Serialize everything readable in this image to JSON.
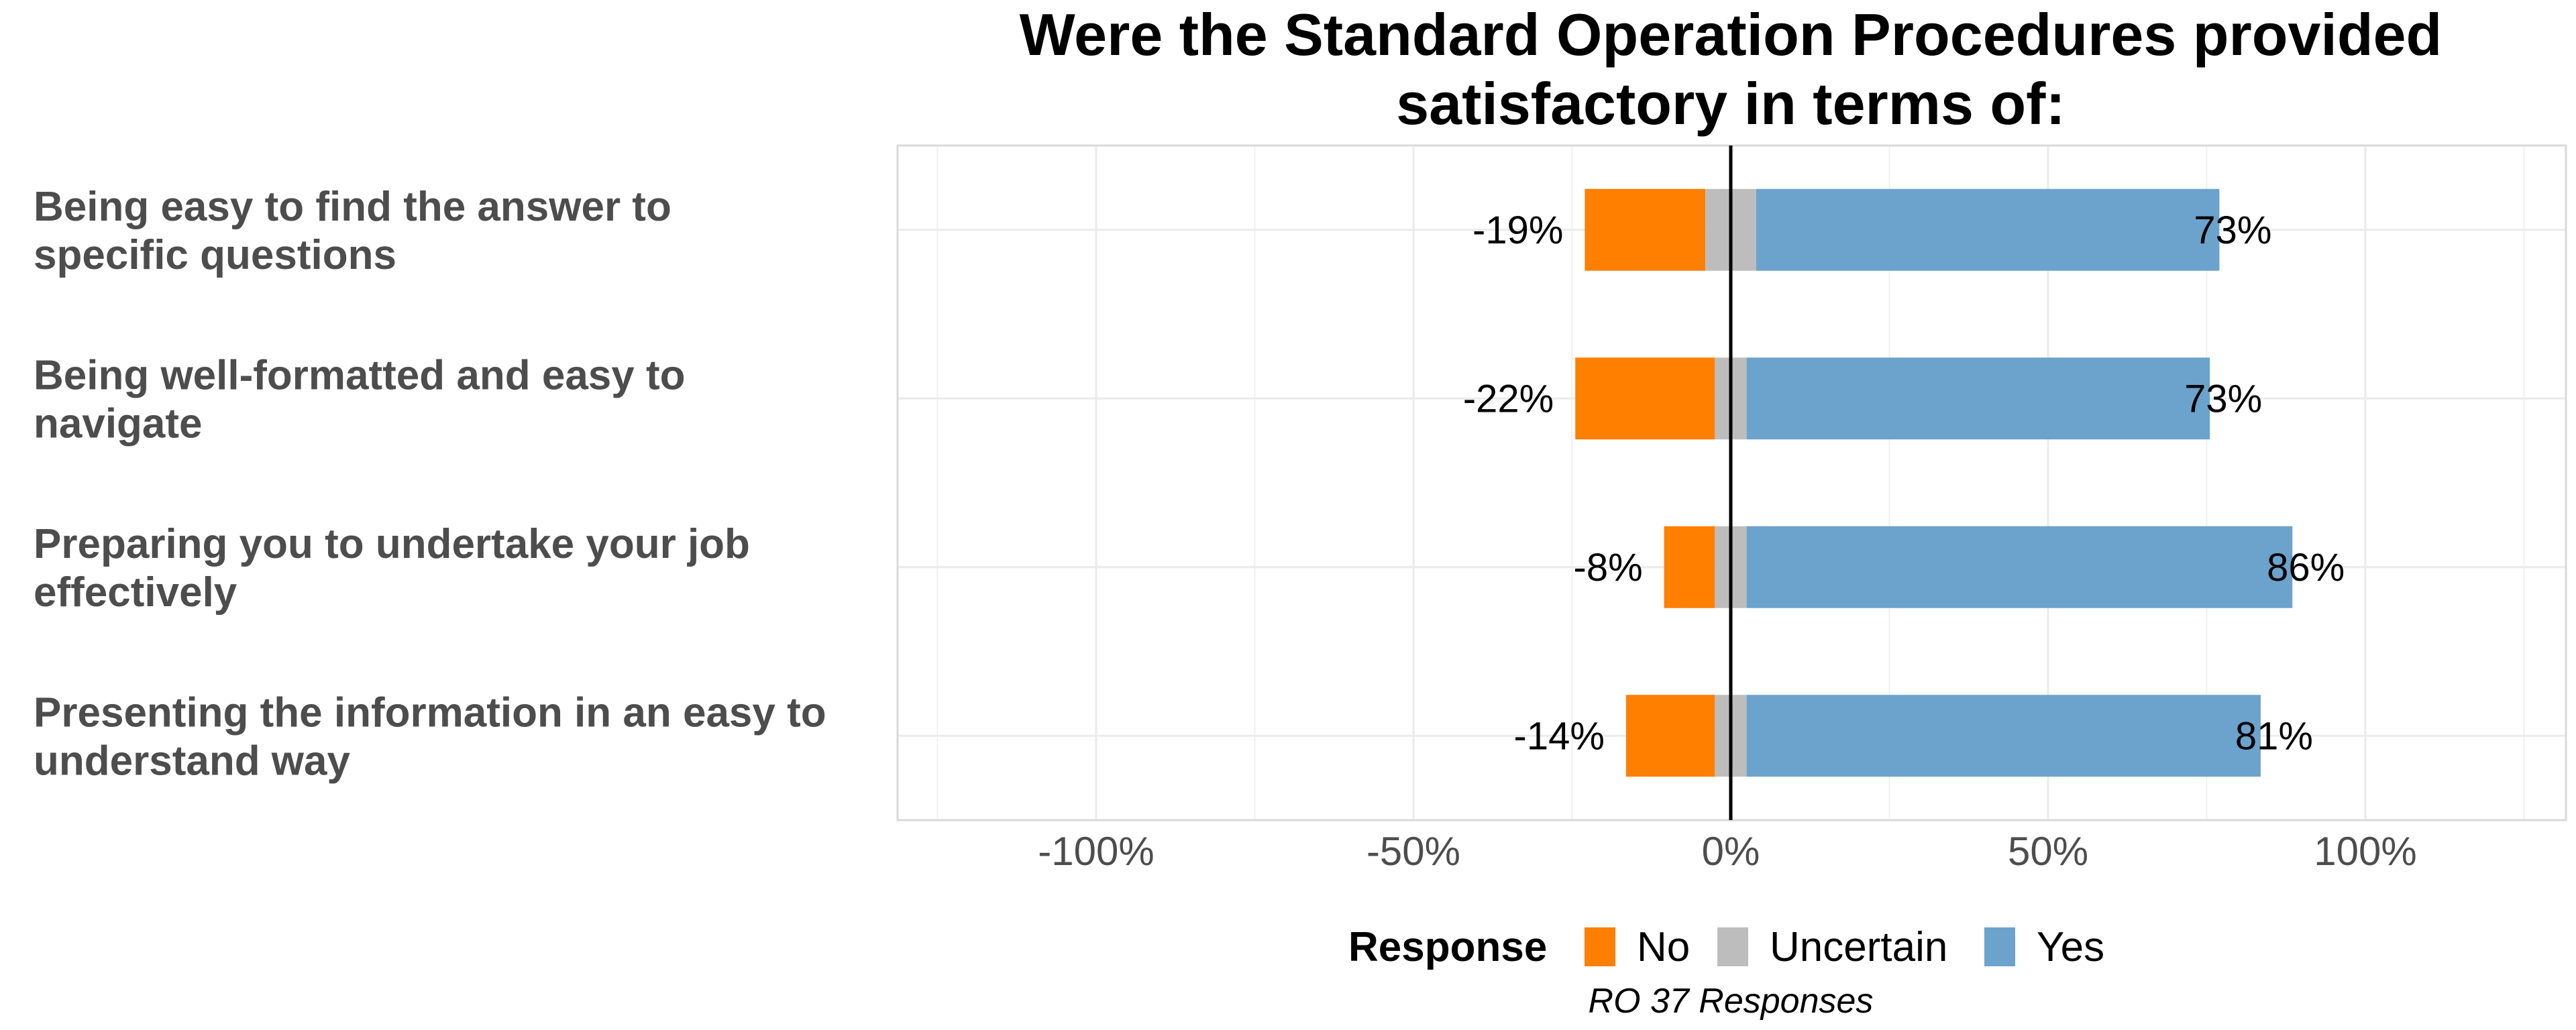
{
  "chart_data": {
    "type": "bar",
    "orientation": "horizontal",
    "stacked": "diverging",
    "title": "Were the Standard Operation Procedures provided satisfactory in terms of:",
    "title_lines": [
      "Were the Standard Operation Procedures provided",
      "satisfactory in terms of:"
    ],
    "categories": [
      "Being easy to find the answer to specific questions",
      "Being well-formatted and easy to navigate",
      "Preparing you to undertake your job effectively",
      "Presenting the information in an easy to understand way"
    ],
    "category_lines": [
      [
        "Being easy to find the answer to",
        "specific questions"
      ],
      [
        "Being well-formatted and easy to",
        "navigate"
      ],
      [
        "Preparing you to undertake your job",
        "effectively"
      ],
      [
        "Presenting the information in an easy to",
        "understand way"
      ]
    ],
    "series": [
      {
        "name": "No",
        "color": "#ff7f00",
        "values": [
          19,
          22,
          8,
          14
        ]
      },
      {
        "name": "Uncertain",
        "color": "#bdbdbd",
        "values": [
          8,
          5,
          5,
          5
        ]
      },
      {
        "name": "Yes",
        "color": "#6ba3cc",
        "values": [
          73,
          73,
          86,
          81
        ]
      }
    ],
    "data_labels": {
      "negative": [
        "-19%",
        "-22%",
        "-8%",
        "-14%"
      ],
      "positive": [
        "73%",
        "73%",
        "86%",
        "81%"
      ]
    },
    "xlim": [
      -130,
      130
    ],
    "x_ticks": [
      -100,
      -50,
      0,
      50,
      100
    ],
    "x_tick_labels": [
      "-100%",
      "-50%",
      "0%",
      "50%",
      "100%"
    ],
    "grid": true,
    "legend": {
      "title": "Response",
      "position": "bottom",
      "entries": [
        "No",
        "Uncertain",
        "Yes"
      ]
    },
    "caption": "RO 37 Responses"
  }
}
